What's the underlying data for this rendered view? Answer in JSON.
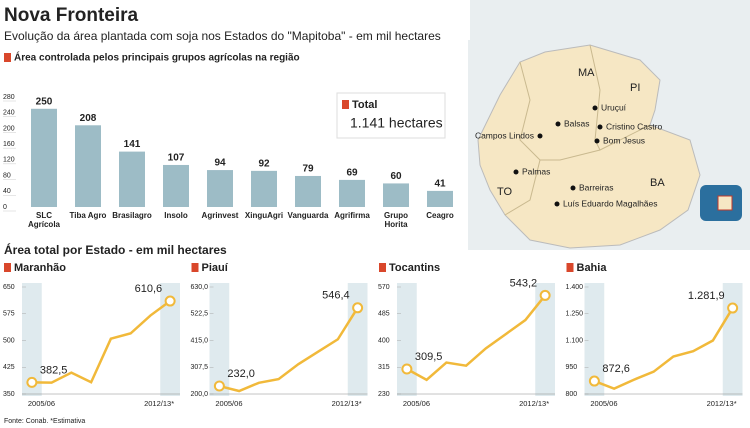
{
  "header": {
    "title": "Nova Fronteira",
    "subtitle": "Evolução da área plantada com soja nos Estados do \"Mapitoba\" - em mil hectares"
  },
  "section_title": "Área total por Estado - em mil hectares",
  "total": {
    "label": "Total",
    "value": "1.141 hectares"
  },
  "map": {
    "states": [
      "MA",
      "PI",
      "TO",
      "BA"
    ],
    "cities": [
      "Uruçuí",
      "Balsas",
      "Campos Lindos",
      "Cristino Castro",
      "Bom Jesus",
      "Palmas",
      "Barreiras",
      "Luís Eduardo Magalhães"
    ]
  },
  "footer": "Fonte: Conab. *Estimativa",
  "chart_data": [
    {
      "type": "bar",
      "title": "Área controlada pelos principais grupos agrícolas na região",
      "color": "#9dbcc6",
      "categories": [
        "SLC Agrícola",
        "Tiba Agro",
        "Brasilagro",
        "Insolo",
        "Agrinvest",
        "XinguAgri",
        "Vanguarda",
        "Agrifirma",
        "Grupo Horita",
        "Ceagro"
      ],
      "values": [
        250,
        208,
        141,
        107,
        94,
        92,
        79,
        69,
        60,
        41
      ],
      "ylim": [
        0,
        280
      ],
      "yticks": [
        0,
        40,
        80,
        120,
        160,
        200,
        240,
        280
      ]
    },
    {
      "type": "line",
      "title": "Maranhão",
      "color": "#f1b93a",
      "categories": [
        "2005/06",
        null,
        null,
        null,
        null,
        null,
        null,
        "2012/13*"
      ],
      "values": [
        382.5,
        382,
        410,
        383,
        505,
        520,
        570,
        610.6
      ],
      "value_labels": [
        "382,5",
        null,
        null,
        null,
        null,
        null,
        null,
        "610,6"
      ],
      "ylim": [
        350,
        650
      ],
      "yticks": [
        350,
        425,
        500,
        575,
        650
      ]
    },
    {
      "type": "line",
      "title": "Piauí",
      "color": "#f1b93a",
      "categories": [
        "2005/06",
        null,
        null,
        null,
        null,
        null,
        null,
        "2012/13*"
      ],
      "values": [
        232.0,
        212,
        245,
        260,
        320,
        370,
        420,
        546.4
      ],
      "value_labels": [
        "232,0",
        null,
        null,
        null,
        null,
        null,
        null,
        "546,4"
      ],
      "ylim": [
        200,
        630
      ],
      "yticks": [
        {
          "value": 200,
          "label": "200,0"
        },
        {
          "value": 307.5,
          "label": "307,5"
        },
        {
          "value": 415,
          "label": "415,0"
        },
        {
          "value": 522.5,
          "label": "522,5"
        },
        {
          "value": 630,
          "label": "630,0"
        }
      ]
    },
    {
      "type": "line",
      "title": "Tocantins",
      "color": "#f1b93a",
      "categories": [
        "2005/06",
        null,
        null,
        null,
        null,
        null,
        null,
        "2012/13*"
      ],
      "values": [
        309.5,
        275,
        330,
        320,
        375,
        420,
        465,
        543.2
      ],
      "value_labels": [
        "309,5",
        null,
        null,
        null,
        null,
        null,
        null,
        "543,2"
      ],
      "ylim": [
        230,
        570
      ],
      "yticks": [
        230,
        315,
        400,
        485,
        570
      ]
    },
    {
      "type": "line",
      "title": "Bahia",
      "color": "#f1b93a",
      "categories": [
        "2005/06",
        null,
        null,
        null,
        null,
        null,
        null,
        "2012/13*"
      ],
      "values": [
        872.6,
        830,
        880,
        925,
        1010,
        1040,
        1100,
        1281.9
      ],
      "value_labels": [
        "872,6",
        null,
        null,
        null,
        null,
        null,
        null,
        "1.281,9"
      ],
      "ylim": [
        800,
        1400
      ],
      "yticks": [
        {
          "value": 800,
          "label": "800"
        },
        {
          "value": 950,
          "label": "950"
        },
        {
          "value": 1100,
          "label": "1.100"
        },
        {
          "value": 1250,
          "label": "1.250"
        },
        {
          "value": 1400,
          "label": "1.400"
        }
      ]
    }
  ]
}
